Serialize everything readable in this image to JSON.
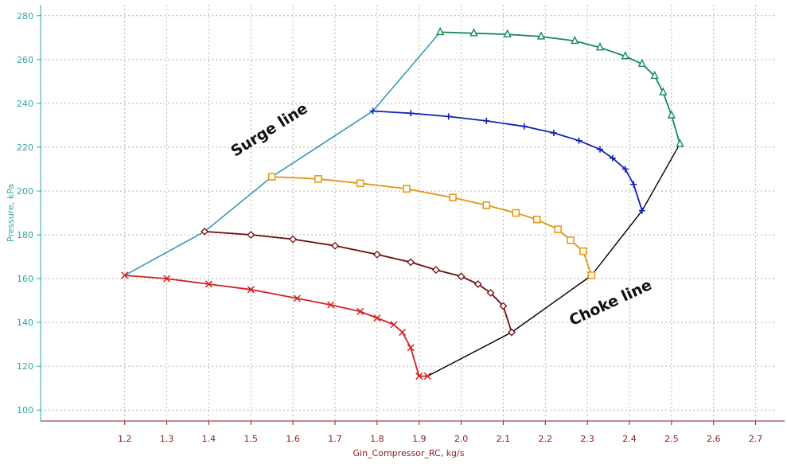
{
  "chart_data": {
    "type": "line",
    "xlabel": "Gin_Compressor_RC, kg/s",
    "ylabel": "Pressure, kPa",
    "xlim": [
      1.0,
      2.75
    ],
    "ylim": [
      95,
      285
    ],
    "x_ticks": [
      "1.2",
      "1.3",
      "1.4",
      "1.5",
      "1.6",
      "1.7",
      "1.8",
      "1.9",
      "2.0",
      "2.1",
      "2.2",
      "2.3",
      "2.4",
      "2.5",
      "2.6",
      "2.7"
    ],
    "y_ticks": [
      "100",
      "120",
      "140",
      "160",
      "180",
      "200",
      "220",
      "240",
      "260",
      "280"
    ],
    "grid": true,
    "series": [
      {
        "color": "#d42020",
        "marker": "x",
        "x": [
          1.2,
          1.3,
          1.4,
          1.5,
          1.61,
          1.69,
          1.76,
          1.8,
          1.84,
          1.86,
          1.88,
          1.9,
          1.92
        ],
        "y": [
          161.5,
          160,
          157.5,
          155,
          151,
          148,
          145,
          142,
          139,
          135.5,
          128.5,
          115.5,
          115.5
        ]
      },
      {
        "color": "#6e0b0b",
        "marker": "diamond",
        "x": [
          1.39,
          1.5,
          1.6,
          1.7,
          1.8,
          1.88,
          1.94,
          2.0,
          2.04,
          2.07,
          2.1,
          2.12
        ],
        "y": [
          181.5,
          180,
          178,
          175,
          171,
          167.5,
          164,
          161,
          157.5,
          153.5,
          147.5,
          135.5
        ]
      },
      {
        "color": "#e39410",
        "marker": "square",
        "x": [
          1.55,
          1.66,
          1.76,
          1.87,
          1.98,
          2.06,
          2.13,
          2.18,
          2.23,
          2.26,
          2.29,
          2.31
        ],
        "y": [
          206.5,
          205.5,
          203.5,
          201,
          197,
          193.5,
          190,
          187,
          182.5,
          177.5,
          172.5,
          161.5
        ]
      },
      {
        "color": "#1020b8",
        "marker": "plus",
        "x": [
          1.79,
          1.88,
          1.97,
          2.06,
          2.15,
          2.22,
          2.28,
          2.33,
          2.36,
          2.39,
          2.41,
          2.43
        ],
        "y": [
          236.5,
          235.5,
          234,
          232,
          229.5,
          226.5,
          223,
          219,
          215,
          210,
          203,
          191
        ]
      },
      {
        "color": "#128a5a",
        "marker": "triangle",
        "x": [
          1.95,
          2.03,
          2.11,
          2.19,
          2.27,
          2.33,
          2.39,
          2.43,
          2.46,
          2.48,
          2.5,
          2.52
        ],
        "y": [
          272.5,
          272,
          271.5,
          270.5,
          268.5,
          265.5,
          261.5,
          258,
          252.5,
          245,
          234.5,
          221.5
        ]
      }
    ],
    "surge_line": {
      "color": "#1f8fb0",
      "x": [
        1.2,
        1.39,
        1.55,
        1.79,
        1.95
      ],
      "y": [
        161.5,
        181.5,
        206.5,
        236.5,
        272.5
      ]
    },
    "choke_line": {
      "color": "#000000",
      "x": [
        1.92,
        2.12,
        2.31,
        2.43,
        2.52
      ],
      "y": [
        115.5,
        135.5,
        161.5,
        191,
        221.5
      ]
    },
    "annotations": [
      {
        "text": "Surge line",
        "x": 1.55,
        "y": 226,
        "rotation": -32
      },
      {
        "text": "Choke line",
        "x": 2.36,
        "y": 147,
        "rotation": -25
      }
    ],
    "axis_colors": {
      "y_axis": "#2fa6a6",
      "x_axis": "#8b1a1a",
      "grid": "#b0b0b0"
    }
  }
}
